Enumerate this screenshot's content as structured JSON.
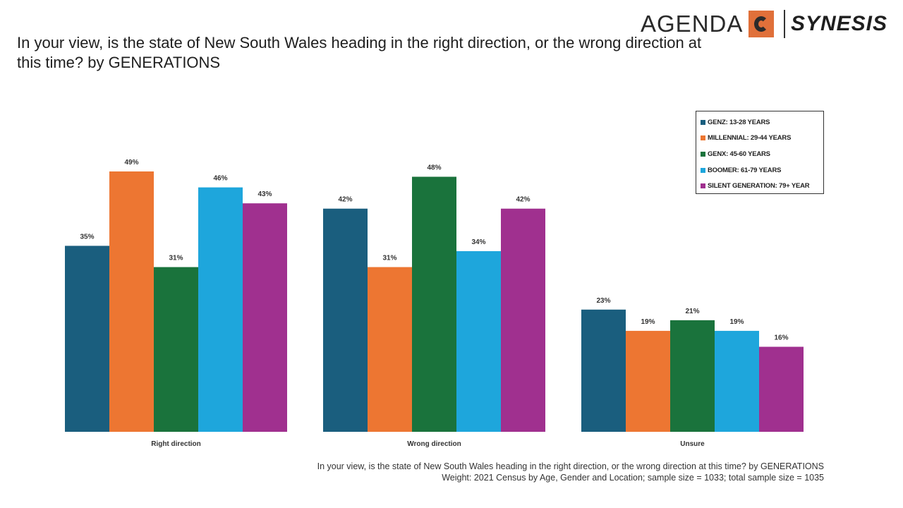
{
  "title": "In your view, is the state of New South Wales heading in the right direction, or the wrong direction at this time? by GENERATIONS",
  "logo": {
    "agenda": "AGENDA",
    "c": "C",
    "synesis": "SYNESIS"
  },
  "colors": {
    "genz": "#1a5e7e",
    "millennial": "#ed7632",
    "genx": "#1a733c",
    "boomer": "#1ea6dc",
    "silent": "#a0308f"
  },
  "chart_data": {
    "type": "bar",
    "categories": [
      "Right direction",
      "Wrong direction",
      "Unsure"
    ],
    "series": [
      {
        "name": "GENZ: 13-28 YEARS",
        "color": "#1a5e7e",
        "values": [
          35,
          42,
          23
        ],
        "labels": [
          "35%",
          "42%",
          "23%"
        ]
      },
      {
        "name": "MILLENNIAL: 29-44 YEARS",
        "color": "#ed7632",
        "values": [
          49,
          31,
          19
        ],
        "labels": [
          "49%",
          "31%",
          "19%"
        ]
      },
      {
        "name": "GENX: 45-60 YEARS",
        "color": "#1a733c",
        "values": [
          31,
          48,
          21
        ],
        "labels": [
          "31%",
          "48%",
          "21%"
        ]
      },
      {
        "name": "BOOMER: 61-79 YEARS",
        "color": "#1ea6dc",
        "values": [
          46,
          34,
          19
        ],
        "labels": [
          "46%",
          "34%",
          "19%"
        ]
      },
      {
        "name": "SILENT GENERATION: 79+ YEAR",
        "color": "#a0308f",
        "values": [
          43,
          42,
          16
        ],
        "labels": [
          "43%",
          "42%",
          "16%"
        ]
      }
    ],
    "ylim": [
      0,
      50
    ],
    "legend_position": "top-right",
    "grid": false
  },
  "footer": {
    "line1": "In your view, is the state of New South Wales heading in the right direction, or the wrong direction at this time? by GENERATIONS",
    "line2": "Weight: 2021 Census by Age, Gender and Location; sample size = 1033; total sample size = 1035"
  }
}
